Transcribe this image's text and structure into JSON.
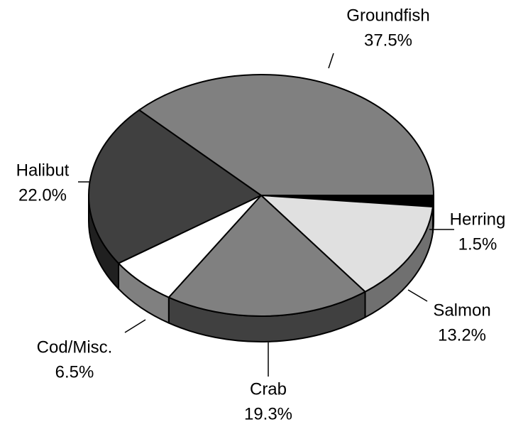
{
  "chart_data": {
    "type": "pie3d",
    "categories": [
      "Herring",
      "Salmon",
      "Crab",
      "Cod/Misc.",
      "Halibut",
      "Groundfish"
    ],
    "values": [
      1.5,
      13.2,
      19.3,
      6.5,
      22.0,
      37.5
    ],
    "value_labels": [
      "1.5%",
      "13.2%",
      "19.3%",
      "6.5%",
      "22.0%",
      "37.5%"
    ],
    "colors": [
      "#000000",
      "#e0e0e0",
      "#808080",
      "#ffffff",
      "#404040",
      "#808080"
    ]
  }
}
